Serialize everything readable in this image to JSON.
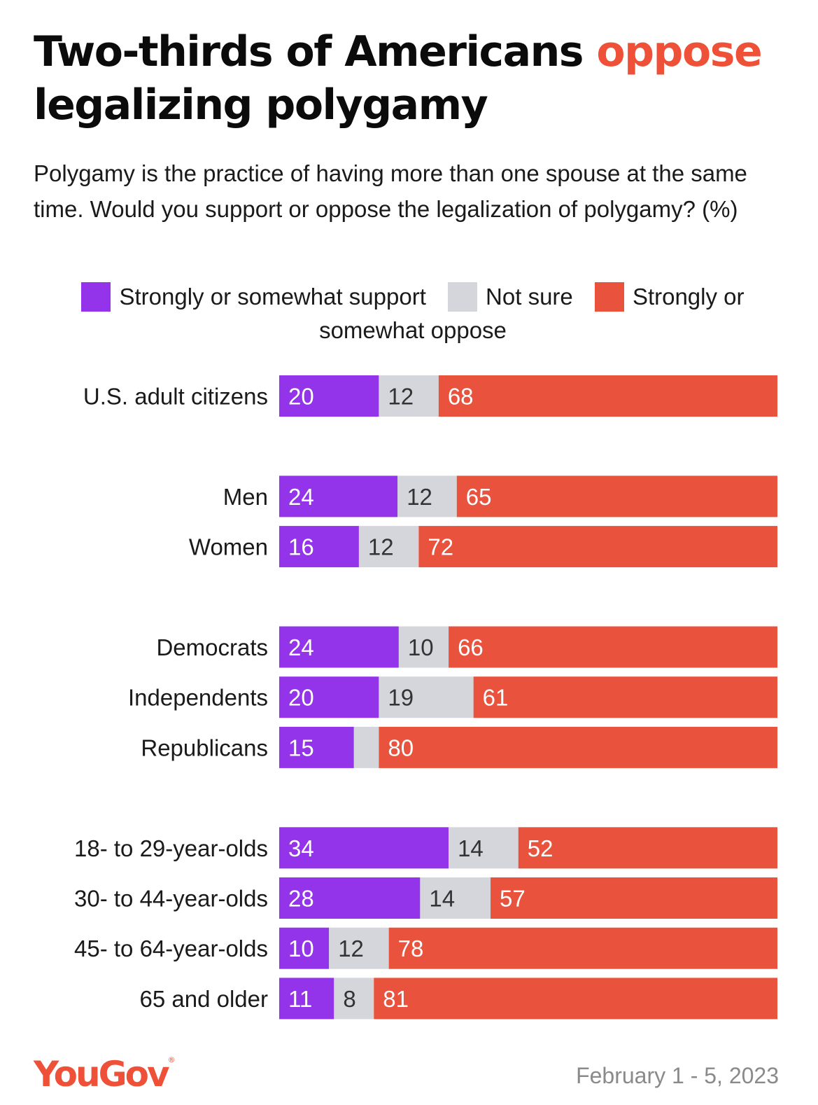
{
  "title_main": "Two-thirds of Americans",
  "title_highlight": "oppose",
  "title_rest": "legalizing polygamy",
  "subtitle": "Polygamy is the practice of having more than one spouse at the same time. Would you support or oppose the legalization of polygamy? (%)",
  "legend": {
    "support": "Strongly or somewhat support",
    "not_sure": "Not sure",
    "oppose": "Strongly or somewhat oppose"
  },
  "colors": {
    "support": "#9333ea",
    "not_sure": "#d4d6dc",
    "oppose": "#e9523c",
    "accent": "#ee5138"
  },
  "logo": "YouGov",
  "logo_mark": "®",
  "date": "February 1 - 5, 2023",
  "chart_data": {
    "type": "bar",
    "orientation": "horizontal",
    "stacked": true,
    "xlim": [
      0,
      100
    ],
    "legend_position": "top",
    "series": [
      {
        "name": "Strongly or somewhat support",
        "values": [
          20,
          24,
          16,
          24,
          20,
          15,
          34,
          28,
          10,
          11
        ],
        "labels": [
          "20",
          "24",
          "16",
          "24",
          "20",
          "15",
          "34",
          "28",
          "10",
          "11"
        ]
      },
      {
        "name": "Not sure",
        "values": [
          12,
          12,
          12,
          10,
          19,
          5,
          14,
          14,
          12,
          8
        ],
        "labels": [
          "12",
          "12",
          "12",
          "10",
          "19",
          "",
          "14",
          "14",
          "12",
          "8"
        ]
      },
      {
        "name": "Strongly or somewhat oppose",
        "values": [
          68,
          65,
          72,
          66,
          61,
          80,
          52,
          57,
          78,
          81
        ],
        "labels": [
          "68",
          "65",
          "72",
          "66",
          "61",
          "80",
          "52",
          "57",
          "78",
          "81"
        ]
      }
    ],
    "categories": [
      "U.S. adult citizens",
      "Men",
      "Women",
      "Democrats",
      "Independents",
      "Republicans",
      "18- to 29-year-olds",
      "30- to 44-year-olds",
      "45- to 64-year-olds",
      "65 and older"
    ],
    "groups": [
      0,
      1,
      1,
      2,
      2,
      2,
      3,
      3,
      3,
      3
    ]
  }
}
